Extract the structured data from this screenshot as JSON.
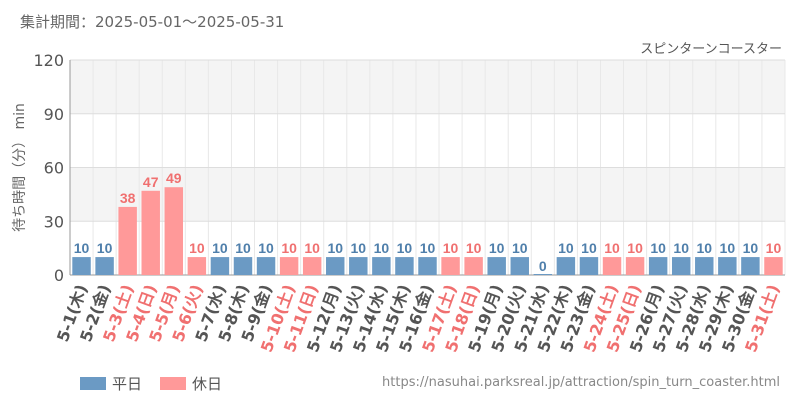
{
  "header": {
    "period": "集計期間：2025-05-01～2025-05-31"
  },
  "colors": {
    "weekday": "#6b9ac4",
    "holiday": "#ff9999",
    "weekday_text": "#4f7fab",
    "holiday_text": "#f07070",
    "axis_text": "#555555",
    "grid": "#e8e8e8",
    "band": "#f4f4f4"
  },
  "legend": {
    "weekday": "平日",
    "holiday": "休日"
  },
  "source": "https://nasuhai.parksreal.jp/attraction/spin_turn_coaster.html",
  "chart_data": {
    "type": "bar",
    "title": "スピンターンコースター",
    "ylabel": "待ち時間（分） min",
    "ylim": [
      0,
      120
    ],
    "yticks": [
      0,
      30,
      60,
      90,
      120
    ],
    "grid": true,
    "legend_position": "bottom-left",
    "categories": [
      "5-1(木)",
      "5-2(金)",
      "5-3(土)",
      "5-4(日)",
      "5-5(月)",
      "5-6(火)",
      "5-7(水)",
      "5-8(木)",
      "5-9(金)",
      "5-10(土)",
      "5-11(日)",
      "5-12(月)",
      "5-13(火)",
      "5-14(水)",
      "5-15(木)",
      "5-16(金)",
      "5-17(土)",
      "5-18(日)",
      "5-19(月)",
      "5-20(火)",
      "5-21(水)",
      "5-22(木)",
      "5-23(金)",
      "5-24(土)",
      "5-25(日)",
      "5-26(月)",
      "5-27(火)",
      "5-28(水)",
      "5-29(木)",
      "5-30(金)",
      "5-31(土)"
    ],
    "values": [
      10,
      10,
      38,
      47,
      49,
      10,
      10,
      10,
      10,
      10,
      10,
      10,
      10,
      10,
      10,
      10,
      10,
      10,
      10,
      10,
      0,
      10,
      10,
      10,
      10,
      10,
      10,
      10,
      10,
      10,
      10
    ],
    "day_type": [
      "平日",
      "平日",
      "休日",
      "休日",
      "休日",
      "休日",
      "平日",
      "平日",
      "平日",
      "休日",
      "休日",
      "平日",
      "平日",
      "平日",
      "平日",
      "平日",
      "休日",
      "休日",
      "平日",
      "平日",
      "平日",
      "平日",
      "平日",
      "休日",
      "休日",
      "平日",
      "平日",
      "平日",
      "平日",
      "平日",
      "休日"
    ],
    "series": [
      {
        "name": "平日",
        "color": "#6b9ac4"
      },
      {
        "name": "休日",
        "color": "#ff9999"
      }
    ]
  }
}
